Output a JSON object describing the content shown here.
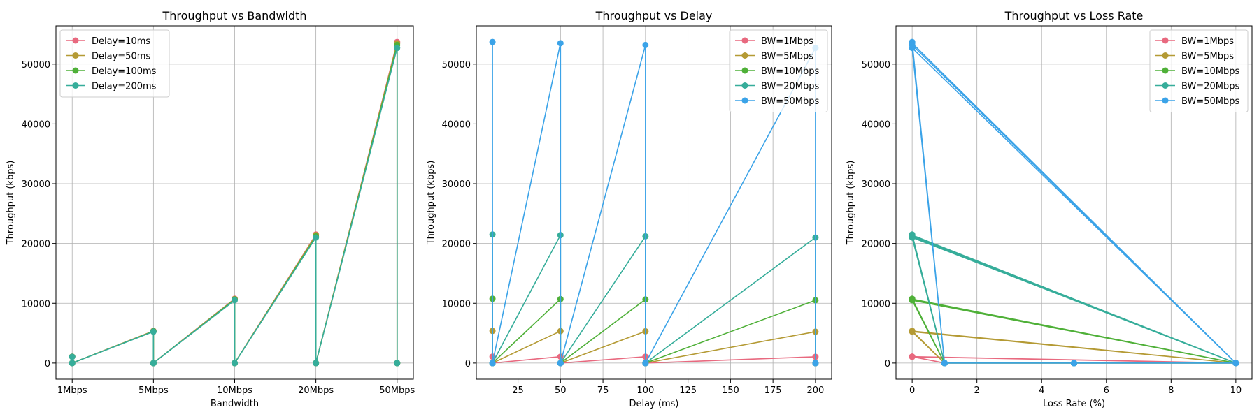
{
  "chart_data": [
    {
      "type": "line",
      "title": "Throughput vs Bandwidth",
      "xlabel": "Bandwidth",
      "ylabel": "Throughput (kbps)",
      "x_scale": "categorical",
      "categories": [
        "1Mbps",
        "5Mbps",
        "10Mbps",
        "20Mbps",
        "50Mbps"
      ],
      "xlim": [
        -0.2,
        4.2
      ],
      "ylim": [
        -2700,
        56400
      ],
      "yticks": [
        0,
        10000,
        20000,
        30000,
        40000,
        50000
      ],
      "grid": true,
      "legend_position": "top-left",
      "series": [
        {
          "name": "Delay=10ms",
          "color": "#e8697f",
          "x": [
            0,
            0,
            0,
            1,
            1,
            1,
            2,
            2,
            2,
            3,
            3,
            3,
            4,
            4,
            4
          ],
          "y": [
            1080,
            0,
            0,
            5380,
            0,
            0,
            10760,
            0,
            0,
            21500,
            0,
            0,
            53700,
            0,
            0
          ]
        },
        {
          "name": "Delay=50ms",
          "color": "#b49a34",
          "x": [
            0,
            0,
            0,
            1,
            1,
            1,
            2,
            2,
            2,
            3,
            3,
            3,
            4,
            4,
            4
          ],
          "y": [
            1070,
            0,
            0,
            5350,
            0,
            0,
            10700,
            0,
            0,
            21400,
            0,
            0,
            53500,
            0,
            0
          ]
        },
        {
          "name": "Delay=100ms",
          "color": "#4fb038",
          "x": [
            0,
            0,
            0,
            1,
            1,
            1,
            2,
            2,
            2,
            3,
            3,
            3,
            4,
            4,
            4
          ],
          "y": [
            1060,
            0,
            0,
            5320,
            0,
            0,
            10640,
            0,
            0,
            21200,
            0,
            0,
            53200,
            0,
            0
          ]
        },
        {
          "name": "Delay=200ms",
          "color": "#36ad9a",
          "x": [
            0,
            0,
            0,
            1,
            1,
            1,
            2,
            2,
            2,
            3,
            3,
            3,
            4,
            4,
            4
          ],
          "y": [
            1050,
            0,
            0,
            5250,
            0,
            0,
            10500,
            0,
            0,
            21000,
            0,
            0,
            52700,
            0,
            0
          ]
        }
      ]
    },
    {
      "type": "line",
      "title": "Throughput vs Delay",
      "xlabel": "Delay (ms)",
      "ylabel": "Throughput (kbps)",
      "xlim": [
        0.5,
        209.5
      ],
      "ylim": [
        -2700,
        56400
      ],
      "xticks": [
        25,
        50,
        75,
        100,
        125,
        150,
        175,
        200
      ],
      "yticks": [
        0,
        10000,
        20000,
        30000,
        40000,
        50000
      ],
      "grid": true,
      "legend_position": "top-right",
      "series": [
        {
          "name": "BW=1Mbps",
          "color": "#e8697f",
          "x": [
            10,
            10,
            10,
            50,
            50,
            50,
            100,
            100,
            100,
            200,
            200,
            200
          ],
          "y": [
            1080,
            0,
            0,
            1070,
            0,
            0,
            1060,
            0,
            0,
            1050,
            0,
            0
          ]
        },
        {
          "name": "BW=5Mbps",
          "color": "#b49a34",
          "x": [
            10,
            10,
            10,
            50,
            50,
            50,
            100,
            100,
            100,
            200,
            200,
            200
          ],
          "y": [
            5380,
            0,
            0,
            5350,
            0,
            0,
            5320,
            0,
            0,
            5250,
            0,
            0
          ]
        },
        {
          "name": "BW=10Mbps",
          "color": "#4fb038",
          "x": [
            10,
            10,
            10,
            50,
            50,
            50,
            100,
            100,
            100,
            200,
            200,
            200
          ],
          "y": [
            10760,
            0,
            0,
            10700,
            0,
            0,
            10640,
            0,
            0,
            10500,
            0,
            0
          ]
        },
        {
          "name": "BW=20Mbps",
          "color": "#36ad9a",
          "x": [
            10,
            10,
            10,
            50,
            50,
            50,
            100,
            100,
            100,
            200,
            200,
            200
          ],
          "y": [
            21500,
            0,
            0,
            21400,
            0,
            0,
            21200,
            0,
            0,
            21000,
            0,
            0
          ]
        },
        {
          "name": "BW=50Mbps",
          "color": "#3ba3e8",
          "x": [
            10,
            10,
            10,
            50,
            50,
            50,
            100,
            100,
            100,
            200,
            200,
            200
          ],
          "y": [
            53700,
            0,
            0,
            53500,
            0,
            0,
            53200,
            0,
            0,
            52700,
            0,
            0
          ]
        }
      ]
    },
    {
      "type": "line",
      "title": "Throughput vs Loss Rate",
      "xlabel": "Loss Rate (%)",
      "ylabel": "Throughput (kbps)",
      "xlim": [
        -0.5,
        10.5
      ],
      "ylim": [
        -2700,
        56400
      ],
      "xticks": [
        0,
        2,
        4,
        6,
        8,
        10
      ],
      "yticks": [
        0,
        10000,
        20000,
        30000,
        40000,
        50000
      ],
      "grid": true,
      "legend_position": "top-right",
      "series": [
        {
          "name": "BW=1Mbps",
          "color": "#e8697f",
          "x": [
            0,
            1,
            5,
            10,
            0,
            1,
            5,
            10,
            0,
            1,
            5,
            10,
            0,
            1,
            5,
            10
          ],
          "y": [
            1080,
            0,
            0,
            0,
            1070,
            0,
            0,
            0,
            1060,
            0,
            0,
            0,
            1050,
            0,
            0,
            0
          ]
        },
        {
          "name": "BW=5Mbps",
          "color": "#b49a34",
          "x": [
            0,
            1,
            5,
            10,
            0,
            1,
            5,
            10,
            0,
            1,
            5,
            10,
            0,
            1,
            5,
            10
          ],
          "y": [
            5380,
            0,
            0,
            0,
            5350,
            0,
            0,
            0,
            5320,
            0,
            0,
            0,
            5250,
            0,
            0,
            0
          ]
        },
        {
          "name": "BW=10Mbps",
          "color": "#4fb038",
          "x": [
            0,
            1,
            5,
            10,
            0,
            1,
            5,
            10,
            0,
            1,
            5,
            10,
            0,
            1,
            5,
            10
          ],
          "y": [
            10760,
            0,
            0,
            0,
            10700,
            0,
            0,
            0,
            10640,
            0,
            0,
            0,
            10500,
            0,
            0,
            0
          ]
        },
        {
          "name": "BW=20Mbps",
          "color": "#36ad9a",
          "x": [
            0,
            1,
            5,
            10,
            0,
            1,
            5,
            10,
            0,
            1,
            5,
            10,
            0,
            1,
            5,
            10
          ],
          "y": [
            21500,
            0,
            0,
            0,
            21400,
            0,
            0,
            0,
            21200,
            0,
            0,
            0,
            21000,
            0,
            0,
            0
          ]
        },
        {
          "name": "BW=50Mbps",
          "color": "#3ba3e8",
          "x": [
            0,
            1,
            5,
            10,
            0,
            1,
            5,
            10,
            0,
            1,
            5,
            10,
            0,
            1,
            5,
            10
          ],
          "y": [
            53700,
            0,
            0,
            0,
            53500,
            0,
            0,
            0,
            53200,
            0,
            0,
            0,
            52700,
            0,
            0,
            0
          ]
        }
      ]
    }
  ]
}
